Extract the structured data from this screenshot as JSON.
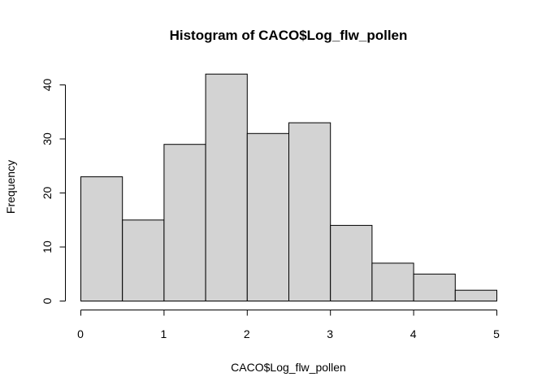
{
  "chart_data": {
    "type": "bar",
    "title": "Histogram of CACO$Log_flw_pollen",
    "xlabel": "CACO$Log_flw_pollen",
    "ylabel": "Frequency",
    "bins": [
      {
        "from": 0.0,
        "to": 0.5,
        "count": 23
      },
      {
        "from": 0.5,
        "to": 1.0,
        "count": 15
      },
      {
        "from": 1.0,
        "to": 1.5,
        "count": 29
      },
      {
        "from": 1.5,
        "to": 2.0,
        "count": 42
      },
      {
        "from": 2.0,
        "to": 2.5,
        "count": 31
      },
      {
        "from": 2.5,
        "to": 3.0,
        "count": 33
      },
      {
        "from": 3.0,
        "to": 3.5,
        "count": 14
      },
      {
        "from": 3.5,
        "to": 4.0,
        "count": 7
      },
      {
        "from": 4.0,
        "to": 4.5,
        "count": 5
      },
      {
        "from": 4.5,
        "to": 5.0,
        "count": 2
      }
    ],
    "xlim": [
      0,
      5
    ],
    "ylim": [
      0,
      42
    ],
    "x_ticks": [
      "0",
      "1",
      "2",
      "3",
      "4",
      "5"
    ],
    "y_ticks": [
      "0",
      "10",
      "20",
      "30",
      "40"
    ],
    "bar_fill": "#d3d3d3",
    "bar_stroke": "#000000",
    "grid": false,
    "legend": "none"
  }
}
